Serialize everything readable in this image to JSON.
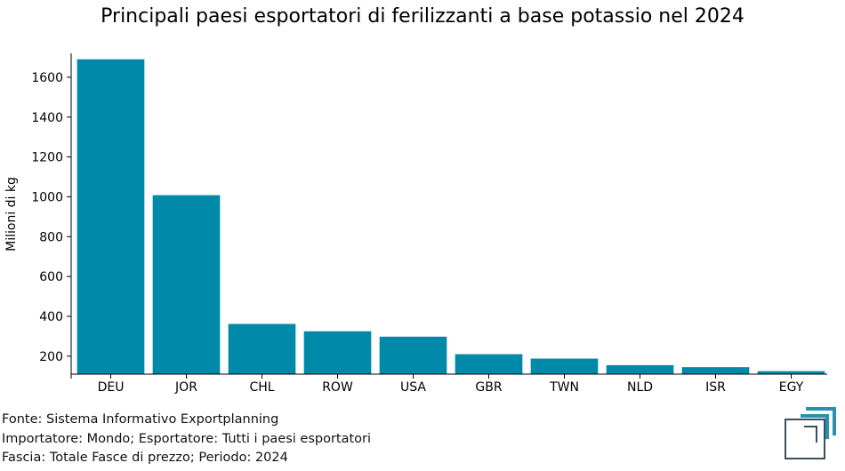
{
  "colors": {
    "bar": "#0089a8",
    "axis": "#000000",
    "logo": "#2a8fb0",
    "logo_dark": "#3a4f5e"
  },
  "icons": {
    "logo": "exportplanning-logo-icon"
  },
  "chart_data": {
    "type": "bar",
    "title": "Principali paesi esportatori di ferilizzanti a base potassio nel 2024",
    "xlabel": "",
    "ylabel": "Milioni di kg",
    "categories": [
      "DEU",
      "JOR",
      "CHL",
      "ROW",
      "USA",
      "GBR",
      "TWN",
      "NLD",
      "ISR",
      "EGY"
    ],
    "values": [
      1690,
      1008,
      362,
      325,
      298,
      210,
      188,
      155,
      145,
      125
    ],
    "yticks": [
      200,
      400,
      600,
      800,
      1000,
      1200,
      1400,
      1600
    ],
    "ylim": [
      110,
      1720
    ],
    "grid": false,
    "legend": "none"
  },
  "footer": {
    "line1": "Fonte: Sistema Informativo Exportplanning",
    "line2": "Importatore: Mondo; Esportatore: Tutti i paesi esportatori",
    "line3": "Fascia: Totale Fasce di prezzo; Periodo: 2024"
  }
}
